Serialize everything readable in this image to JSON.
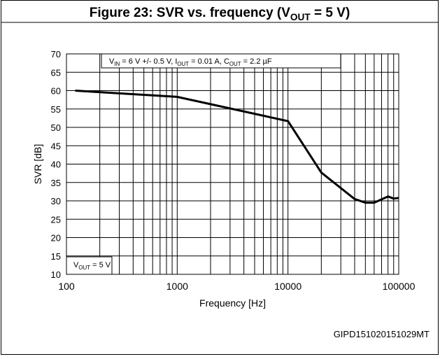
{
  "chart_data": {
    "type": "line",
    "title": [
      "Figure 23: SVR vs. frequency (V",
      "OUT",
      " = 5 V)"
    ],
    "annotation": [
      "V",
      "IN",
      " = 6 V +/- 0.5 V, I",
      "OUT",
      " = 0.01 A, C",
      "OUT",
      " = 2.2 µF"
    ],
    "note": [
      "V",
      "OUT",
      " = 5 V"
    ],
    "code": "GIPD151020151029MT",
    "xlabel": "Frequency [Hz]",
    "ylabel": "SVR [dB]",
    "xscale": "log",
    "xlim": [
      100,
      100000
    ],
    "xticks": [
      100,
      1000,
      10000,
      100000
    ],
    "xminorticks": [
      200,
      300,
      400,
      500,
      600,
      700,
      800,
      900,
      2000,
      3000,
      4000,
      5000,
      6000,
      7000,
      8000,
      9000,
      20000,
      30000,
      40000,
      50000,
      60000,
      70000,
      80000,
      90000
    ],
    "ylim": [
      10,
      70
    ],
    "yticks": [
      10,
      15,
      20,
      25,
      30,
      35,
      40,
      45,
      50,
      55,
      60,
      65,
      70
    ],
    "grid": true,
    "series": [
      {
        "name": "SVR",
        "color": "#000000",
        "x": [
          120,
          1000,
          10000,
          20000,
          40000,
          50000,
          60000,
          80000,
          90000,
          100000
        ],
        "values": [
          60,
          58.3,
          51.7,
          37.7,
          30.5,
          29.5,
          29.5,
          31.2,
          30.6,
          30.8
        ]
      }
    ]
  }
}
